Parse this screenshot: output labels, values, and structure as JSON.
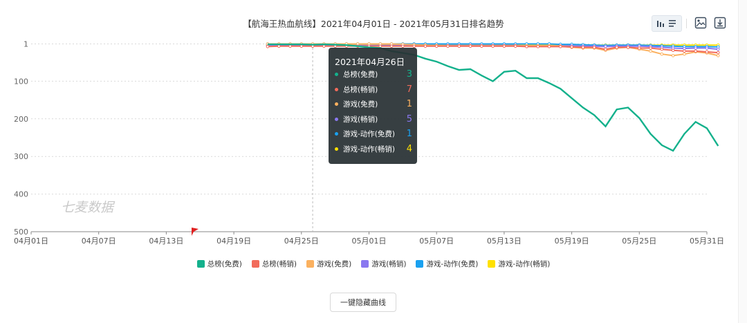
{
  "title": "【航海王热血航线】2021年04月01日 - 2021年05月31日排名趋势",
  "watermark": "七麦数据",
  "button_label": "一键隐藏曲线",
  "toolbar": {
    "icons": [
      "bar-line-toggle-icon",
      "image-save-icon",
      "download-icon"
    ]
  },
  "tooltip": {
    "date": "2021年04月26日",
    "rows": [
      {
        "name": "总榜(免费)",
        "value": "3",
        "color": "#14b18c"
      },
      {
        "name": "总榜(畅销)",
        "value": "7",
        "color": "#f26b5b"
      },
      {
        "name": "游戏(免费)",
        "value": "1",
        "color": "#fbb15f"
      },
      {
        "name": "游戏(畅销)",
        "value": "5",
        "color": "#8a78f0"
      },
      {
        "name": "游戏-动作(免费)",
        "value": "1",
        "color": "#1aa1f0"
      },
      {
        "name": "游戏-动作(畅销)",
        "value": "4",
        "color": "#ffe100"
      }
    ]
  },
  "chart_data": {
    "type": "line",
    "y_inverted": true,
    "ylim": [
      0,
      500
    ],
    "yticks": [
      1,
      100,
      200,
      300,
      400,
      500
    ],
    "x_range": [
      "2021-04-01",
      "2021-05-31"
    ],
    "xticks": [
      "04月01日",
      "04月07日",
      "04月13日",
      "04月19日",
      "04月25日",
      "05月01日",
      "05月07日",
      "05月13日",
      "05月19日",
      "05月25日",
      "05月31日"
    ],
    "x_start_day": 22,
    "grid": true,
    "legend_position": "bottom",
    "series": [
      {
        "name": "总榜(免费)",
        "color": "#14b18c",
        "marker": "none",
        "values": [
          2,
          2,
          2,
          2,
          3,
          2,
          3,
          4,
          7,
          10,
          12,
          20,
          25,
          30,
          40,
          48,
          60,
          70,
          68,
          85,
          100,
          75,
          72,
          92,
          92,
          105,
          120,
          145,
          170,
          190,
          220,
          175,
          170,
          198,
          240,
          270,
          285,
          240,
          208,
          225,
          272
        ]
      },
      {
        "name": "总榜(畅销)",
        "color": "#f26b5b",
        "marker": "circle",
        "values": [
          8,
          7,
          7,
          7,
          7,
          7,
          7,
          7,
          7,
          7,
          7,
          7,
          7,
          7,
          7,
          7,
          7,
          7,
          7,
          7,
          7,
          7,
          7,
          8,
          8,
          8,
          8,
          9,
          10,
          10,
          15,
          10,
          10,
          12,
          12,
          15,
          18,
          20,
          20,
          22,
          24
        ]
      },
      {
        "name": "游戏(免费)",
        "color": "#fbb15f",
        "marker": "circle",
        "values": [
          1,
          1,
          1,
          1,
          1,
          1,
          1,
          1,
          1,
          1,
          1,
          1,
          2,
          3,
          4,
          5,
          6,
          6,
          6,
          6,
          6,
          6,
          6,
          6,
          6,
          6,
          7,
          10,
          12,
          12,
          18,
          12,
          10,
          15,
          20,
          28,
          32,
          28,
          22,
          25,
          32
        ]
      },
      {
        "name": "游戏(畅销)",
        "color": "#8a78f0",
        "marker": "circle",
        "values": [
          5,
          5,
          5,
          5,
          5,
          5,
          5,
          5,
          5,
          5,
          5,
          5,
          5,
          5,
          5,
          5,
          5,
          5,
          5,
          5,
          5,
          5,
          5,
          6,
          6,
          6,
          6,
          6,
          7,
          7,
          8,
          7,
          7,
          7,
          8,
          10,
          12,
          13,
          12,
          12,
          15
        ]
      },
      {
        "name": "游戏-动作(免费)",
        "color": "#1aa1f0",
        "marker": "circle",
        "values": [
          1,
          1,
          1,
          1,
          1,
          1,
          1,
          1,
          1,
          1,
          1,
          1,
          1,
          1,
          1,
          1,
          1,
          1,
          1,
          1,
          1,
          1,
          1,
          1,
          1,
          1,
          2,
          2,
          3,
          4,
          5,
          4,
          4,
          4,
          5,
          6,
          7,
          8,
          8,
          8,
          9
        ]
      },
      {
        "name": "游戏-动作(畅销)",
        "color": "#ffe100",
        "marker": "circle",
        "values": [
          4,
          4,
          4,
          4,
          4,
          4,
          4,
          4,
          4,
          4,
          4,
          4,
          4,
          4,
          4,
          4,
          4,
          4,
          4,
          4,
          4,
          4,
          4,
          4,
          4,
          4,
          4,
          4,
          4,
          4,
          4,
          4,
          4,
          4,
          4,
          4,
          4,
          4,
          4,
          4,
          4
        ]
      }
    ]
  }
}
